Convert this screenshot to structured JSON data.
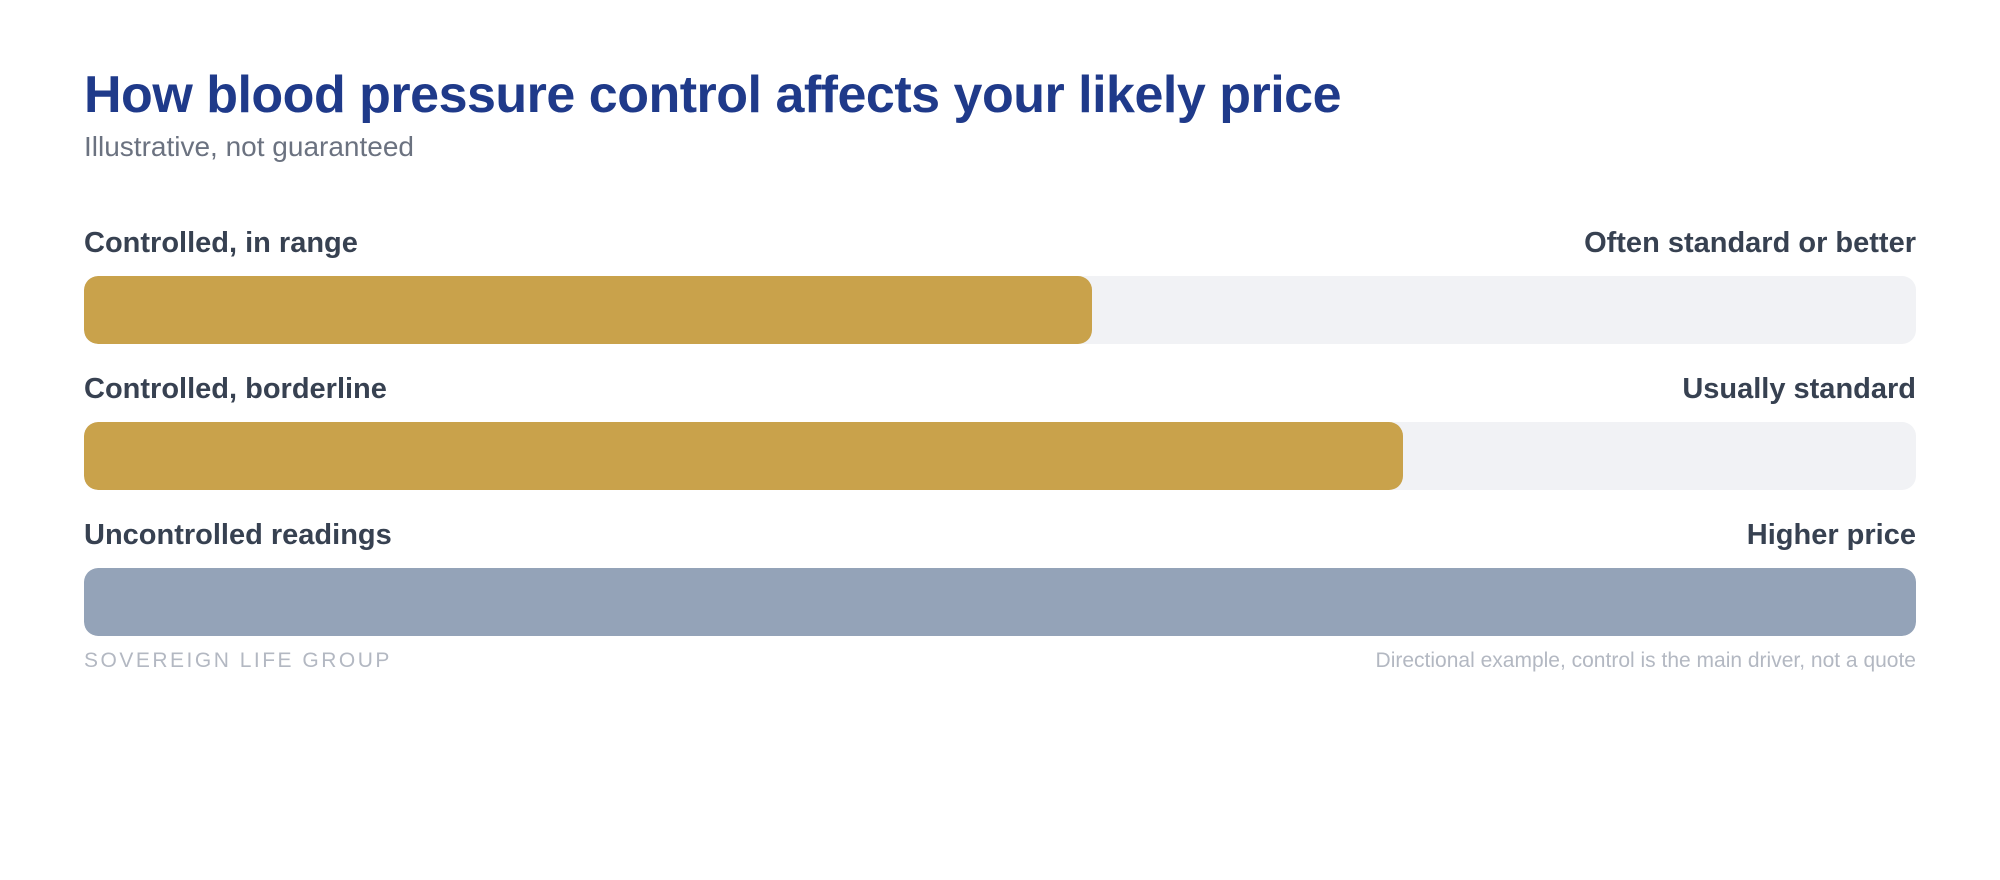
{
  "header": {
    "title": "How blood pressure control affects your likely price",
    "subtitle": "Illustrative, not guaranteed"
  },
  "chart_data": {
    "type": "bar",
    "orientation": "horizontal",
    "title": "How blood pressure control affects your likely price",
    "subtitle": "Illustrative, not guaranteed",
    "categories": [
      "Controlled, in range",
      "Controlled, borderline",
      "Uncontrolled readings"
    ],
    "value_labels": [
      "Often standard or better",
      "Usually standard",
      "Higher price"
    ],
    "values": [
      0.55,
      0.72,
      1.0
    ],
    "colors": [
      "#c9a24b",
      "#c9a24b",
      "#94a3b8"
    ],
    "track_color": "#f1f2f5",
    "grid": false,
    "legend": "none"
  },
  "footer": {
    "brand": "SOVEREIGN LIFE GROUP",
    "note": "Directional example, control is the main driver, not a quote"
  }
}
